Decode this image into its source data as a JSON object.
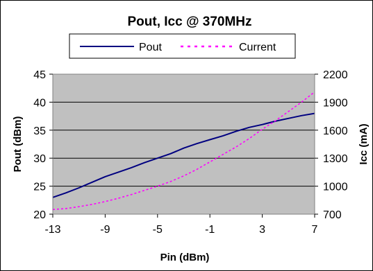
{
  "chart_data": {
    "type": "line",
    "title": "Pout, Icc @ 370MHz",
    "xlabel": "Pin  (dBm)",
    "ylabel_left": "Pout (dBm)",
    "ylabel_right": "Icc (mA)",
    "x_ticks": [
      "-13",
      "-9",
      "-5",
      "-1",
      "3",
      "7"
    ],
    "y_left_ticks": [
      "20",
      "25",
      "30",
      "35",
      "40",
      "45"
    ],
    "y_right_ticks": [
      "700",
      "1000",
      "1300",
      "1600",
      "1900",
      "2200"
    ],
    "xlim": [
      -13,
      7
    ],
    "ylim_left": [
      20,
      45
    ],
    "ylim_right": [
      700,
      2200
    ],
    "grid": "horizontal",
    "legend_position": "top",
    "plot_background": "#c0c0c0",
    "series": [
      {
        "name": "Pout",
        "axis": "left",
        "color": "#000080",
        "style": "solid",
        "x": [
          -13,
          -12,
          -11,
          -10,
          -9,
          -8,
          -7,
          -6,
          -5,
          -4,
          -3,
          -2,
          -1,
          0,
          1,
          2,
          3,
          4,
          5,
          6,
          7
        ],
        "y": [
          23.0,
          23.8,
          24.7,
          25.7,
          26.7,
          27.5,
          28.3,
          29.2,
          30.0,
          30.8,
          31.8,
          32.6,
          33.3,
          34.0,
          34.8,
          35.5,
          36.0,
          36.6,
          37.1,
          37.6,
          38.0
        ]
      },
      {
        "name": "Current",
        "axis": "right",
        "color": "#ff00ff",
        "style": "dotted",
        "x": [
          -13,
          -12,
          -11,
          -10,
          -9,
          -8,
          -7,
          -6,
          -5,
          -4,
          -3,
          -2,
          -1,
          0,
          1,
          2,
          3,
          4,
          5,
          6,
          7
        ],
        "y": [
          750,
          760,
          780,
          805,
          835,
          870,
          910,
          955,
          1000,
          1050,
          1110,
          1180,
          1260,
          1340,
          1420,
          1510,
          1610,
          1700,
          1800,
          1900,
          2010
        ]
      }
    ]
  }
}
